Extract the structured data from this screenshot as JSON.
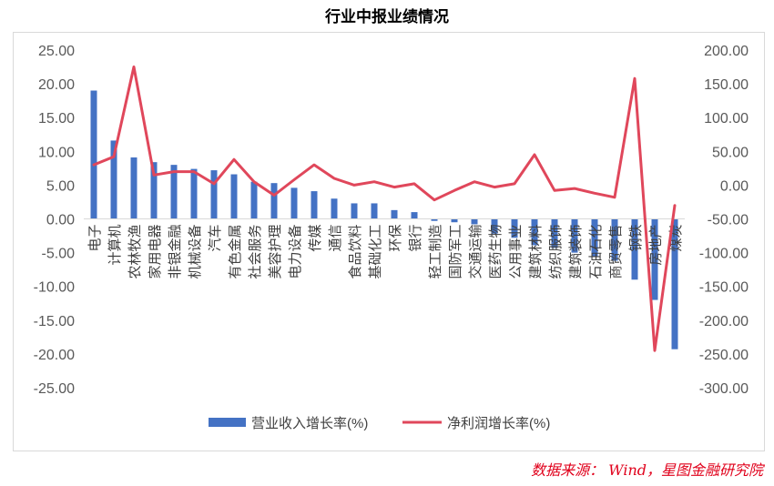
{
  "chart_data": {
    "type": "bar",
    "title": "行业中报业绩情况",
    "categories": [
      "电子",
      "计算机",
      "农林牧渔",
      "家用电器",
      "非银金融",
      "机械设备",
      "汽车",
      "有色金属",
      "社会服务",
      "美容护理",
      "电力设备",
      "传媒",
      "通信",
      "食品饮料",
      "基础化工",
      "环保",
      "银行",
      "轻工制造",
      "国防军工",
      "交通运输",
      "医药生物",
      "公用事业",
      "建筑材料",
      "纺织服饰",
      "建筑装饰",
      "石油石化",
      "商贸零售",
      "钢铁",
      "房地产",
      "煤炭"
    ],
    "series": [
      {
        "name": "营业收入增长率(%)",
        "axis": "left",
        "type": "bar",
        "color": "#4472c4",
        "values": [
          19.0,
          11.6,
          9.1,
          8.4,
          8.0,
          7.4,
          7.2,
          6.6,
          5.5,
          5.3,
          4.6,
          4.1,
          3.0,
          2.3,
          2.3,
          1.3,
          1.0,
          -0.3,
          -0.5,
          -0.8,
          -2.2,
          -2.8,
          -3.9,
          -4.3,
          -5.0,
          -5.6,
          -6.2,
          -9.0,
          -12.0,
          -19.3
        ]
      },
      {
        "name": "净利润增长率(%)",
        "axis": "right",
        "type": "line",
        "color": "#e0475b",
        "values": [
          30,
          42,
          175,
          15,
          20,
          20,
          2,
          38,
          5,
          -15,
          8,
          30,
          10,
          0,
          5,
          -3,
          2,
          -22,
          -8,
          5,
          -3,
          2,
          45,
          -8,
          -5,
          -12,
          -18,
          158,
          -245,
          -30
        ]
      }
    ],
    "yleft": {
      "ylim": [
        -25,
        25
      ],
      "ticks": [
        "25.00",
        "20.00",
        "15.00",
        "10.00",
        "5.00",
        "0.00",
        "-5.00",
        "-10.00",
        "-15.00",
        "-20.00",
        "-25.00"
      ]
    },
    "yright": {
      "ylim": [
        -300,
        200
      ],
      "ticks": [
        "200.00",
        "150.00",
        "100.00",
        "50.00",
        "0.00",
        "-50.00",
        "-100.00",
        "-150.00",
        "-200.00",
        "-250.00",
        "-300.00"
      ]
    },
    "legend_position": "bottom",
    "grid": false
  },
  "source": "数据来源： Wind，星图金融研究院"
}
